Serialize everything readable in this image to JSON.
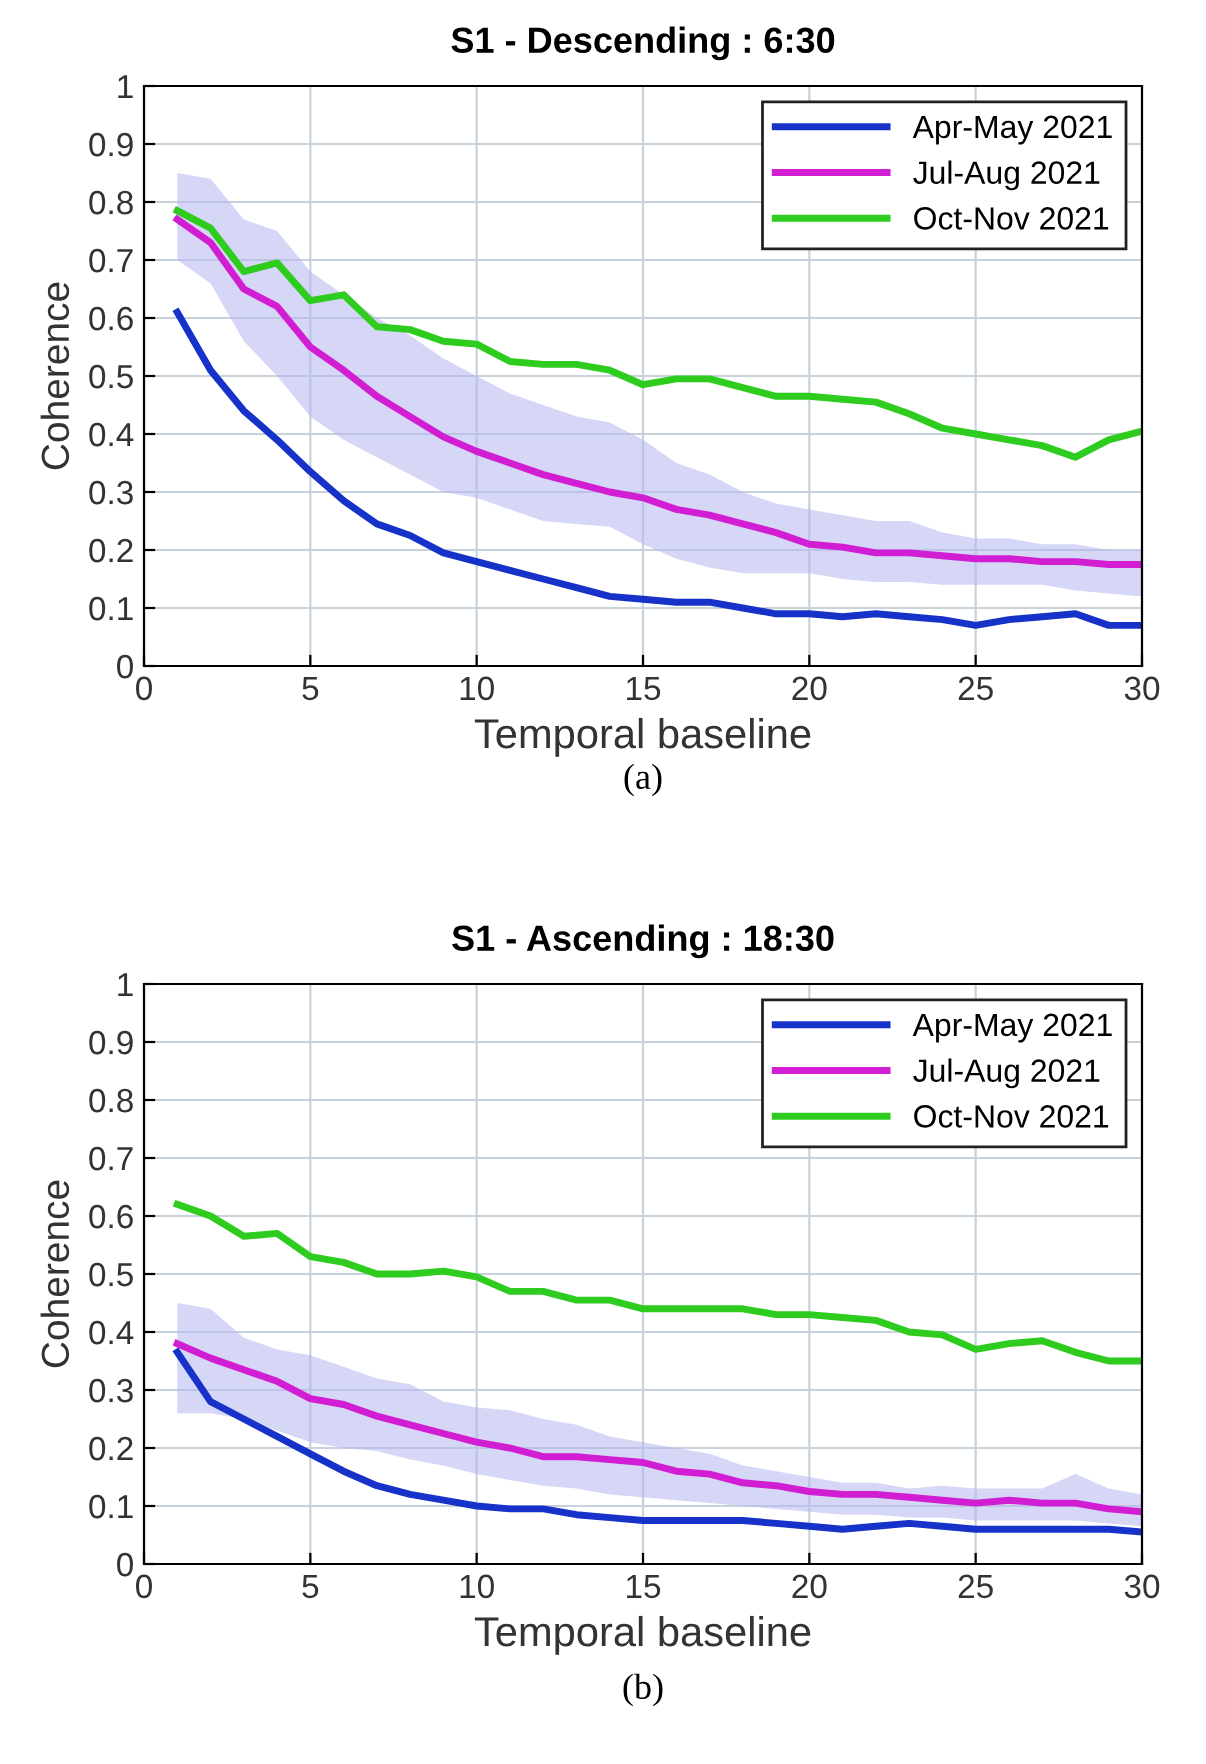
{
  "chart_data": [
    {
      "type": "line",
      "title": "S1 - Descending : 6:30",
      "xlabel": "Temporal baseline",
      "ylabel": "Coherence",
      "annotations": [
        "(a)"
      ],
      "x": [
        1,
        2,
        3,
        4,
        5,
        6,
        7,
        8,
        9,
        10,
        11,
        12,
        13,
        14,
        15,
        16,
        17,
        18,
        19,
        20,
        21,
        22,
        23,
        24,
        25,
        26,
        27,
        28,
        29,
        30
      ],
      "series": [
        {
          "name": "Apr-May 2021",
          "color": "#1632c8",
          "values": [
            0.61,
            0.51,
            0.44,
            0.39,
            0.335,
            0.285,
            0.245,
            0.225,
            0.195,
            0.18,
            0.165,
            0.15,
            0.135,
            0.12,
            0.115,
            0.11,
            0.11,
            0.1,
            0.09,
            0.09,
            0.085,
            0.09,
            0.085,
            0.08,
            0.07,
            0.08,
            0.085,
            0.09,
            0.07,
            0.07
          ]
        },
        {
          "name": "Jul-Aug 2021",
          "color": "#d21ed2",
          "values": [
            0.77,
            0.73,
            0.65,
            0.62,
            0.55,
            0.51,
            0.465,
            0.43,
            0.395,
            0.37,
            0.35,
            0.33,
            0.315,
            0.3,
            0.29,
            0.27,
            0.26,
            0.245,
            0.23,
            0.21,
            0.205,
            0.195,
            0.195,
            0.19,
            0.185,
            0.185,
            0.18,
            0.18,
            0.175,
            0.175
          ],
          "lower": [
            0.7,
            0.66,
            0.56,
            0.5,
            0.43,
            0.39,
            0.36,
            0.33,
            0.3,
            0.29,
            0.27,
            0.25,
            0.245,
            0.24,
            0.21,
            0.185,
            0.17,
            0.16,
            0.16,
            0.16,
            0.15,
            0.145,
            0.145,
            0.14,
            0.14,
            0.14,
            0.14,
            0.13,
            0.125,
            0.12
          ],
          "upper": [
            0.85,
            0.84,
            0.77,
            0.75,
            0.68,
            0.64,
            0.6,
            0.57,
            0.53,
            0.5,
            0.47,
            0.45,
            0.43,
            0.42,
            0.39,
            0.35,
            0.33,
            0.3,
            0.28,
            0.27,
            0.26,
            0.25,
            0.25,
            0.23,
            0.22,
            0.22,
            0.21,
            0.21,
            0.2,
            0.2
          ]
        },
        {
          "name": "Oct-Nov 2021",
          "color": "#2ecc1e",
          "values": [
            0.785,
            0.755,
            0.68,
            0.695,
            0.63,
            0.64,
            0.585,
            0.58,
            0.56,
            0.555,
            0.525,
            0.52,
            0.52,
            0.51,
            0.485,
            0.495,
            0.495,
            0.48,
            0.465,
            0.465,
            0.46,
            0.455,
            0.435,
            0.41,
            0.4,
            0.39,
            0.38,
            0.36,
            0.39,
            0.405
          ]
        }
      ],
      "xlim": [
        0,
        30
      ],
      "xticks": [
        0,
        5,
        10,
        15,
        20,
        25,
        30
      ],
      "ylim": [
        0,
        1
      ],
      "yticks": [
        0,
        0.1,
        0.2,
        0.3,
        0.4,
        0.5,
        0.6,
        0.7,
        0.8,
        0.9,
        1
      ],
      "grid": true,
      "legend": "top right"
    },
    {
      "type": "line",
      "title": "S1 - Ascending : 18:30",
      "xlabel": "Temporal baseline",
      "ylabel": "Coherence",
      "annotations": [
        "(b)"
      ],
      "x": [
        1,
        2,
        3,
        4,
        5,
        6,
        7,
        8,
        9,
        10,
        11,
        12,
        13,
        14,
        15,
        16,
        17,
        18,
        19,
        20,
        21,
        22,
        23,
        24,
        25,
        26,
        27,
        28,
        29,
        30
      ],
      "series": [
        {
          "name": "Apr-May 2021",
          "color": "#1632c8",
          "values": [
            0.365,
            0.28,
            0.25,
            0.22,
            0.19,
            0.16,
            0.135,
            0.12,
            0.11,
            0.1,
            0.095,
            0.095,
            0.085,
            0.08,
            0.075,
            0.075,
            0.075,
            0.075,
            0.07,
            0.065,
            0.06,
            0.065,
            0.07,
            0.065,
            0.06,
            0.06,
            0.06,
            0.06,
            0.06,
            0.055
          ]
        },
        {
          "name": "Jul-Aug 2021",
          "color": "#d21ed2",
          "values": [
            0.38,
            0.355,
            0.335,
            0.315,
            0.285,
            0.275,
            0.255,
            0.24,
            0.225,
            0.21,
            0.2,
            0.185,
            0.185,
            0.18,
            0.175,
            0.16,
            0.155,
            0.14,
            0.135,
            0.125,
            0.12,
            0.12,
            0.115,
            0.11,
            0.105,
            0.11,
            0.105,
            0.105,
            0.095,
            0.09
          ],
          "lower": [
            0.26,
            0.26,
            0.25,
            0.23,
            0.21,
            0.2,
            0.195,
            0.18,
            0.17,
            0.155,
            0.145,
            0.135,
            0.13,
            0.12,
            0.115,
            0.11,
            0.105,
            0.1,
            0.095,
            0.09,
            0.085,
            0.085,
            0.08,
            0.08,
            0.075,
            0.075,
            0.075,
            0.075,
            0.07,
            0.065
          ],
          "upper": [
            0.45,
            0.44,
            0.39,
            0.37,
            0.36,
            0.34,
            0.32,
            0.31,
            0.28,
            0.27,
            0.265,
            0.25,
            0.24,
            0.22,
            0.21,
            0.2,
            0.19,
            0.17,
            0.16,
            0.15,
            0.14,
            0.14,
            0.13,
            0.135,
            0.13,
            0.13,
            0.13,
            0.155,
            0.13,
            0.12
          ]
        },
        {
          "name": "Oct-Nov 2021",
          "color": "#2ecc1e",
          "values": [
            0.62,
            0.6,
            0.565,
            0.57,
            0.53,
            0.52,
            0.5,
            0.5,
            0.505,
            0.495,
            0.47,
            0.47,
            0.455,
            0.455,
            0.44,
            0.44,
            0.44,
            0.44,
            0.43,
            0.43,
            0.425,
            0.42,
            0.4,
            0.395,
            0.37,
            0.38,
            0.385,
            0.365,
            0.35,
            0.35
          ]
        }
      ],
      "xlim": [
        0,
        30
      ],
      "xticks": [
        0,
        5,
        10,
        15,
        20,
        25,
        30
      ],
      "ylim": [
        0,
        1
      ],
      "yticks": [
        0,
        0.1,
        0.2,
        0.3,
        0.4,
        0.5,
        0.6,
        0.7,
        0.8,
        0.9,
        1
      ],
      "grid": true,
      "legend": "top right"
    }
  ]
}
